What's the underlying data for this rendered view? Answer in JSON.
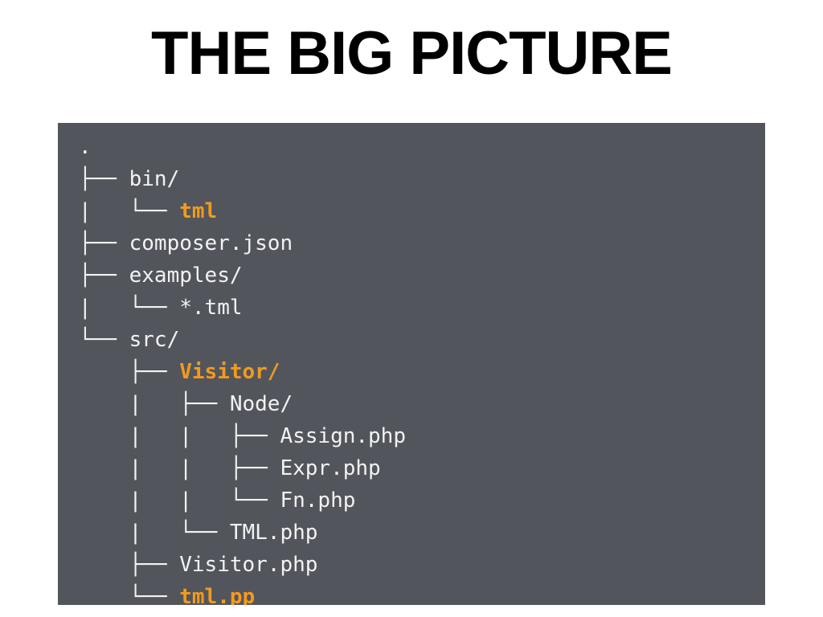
{
  "slide": {
    "title": "THE BIG PICTURE"
  },
  "colors": {
    "panel_background": "#52565c",
    "text": "#f2f2f2",
    "highlight": "#f39a1e"
  },
  "tree": {
    "lines": [
      {
        "prefix": "",
        "name": ".",
        "highlight": false
      },
      {
        "prefix": "├── ",
        "name": "bin/",
        "highlight": false
      },
      {
        "prefix": "|   └── ",
        "name": "tml",
        "highlight": true
      },
      {
        "prefix": "├── ",
        "name": "composer.json",
        "highlight": false
      },
      {
        "prefix": "├── ",
        "name": "examples/",
        "highlight": false
      },
      {
        "prefix": "|   └── ",
        "name": "*.tml",
        "highlight": false
      },
      {
        "prefix": "└── ",
        "name": "src/",
        "highlight": false
      },
      {
        "prefix": "    ├── ",
        "name": "Visitor/",
        "highlight": true
      },
      {
        "prefix": "    |   ├── ",
        "name": "Node/",
        "highlight": false
      },
      {
        "prefix": "    |   |   ├── ",
        "name": "Assign.php",
        "highlight": false
      },
      {
        "prefix": "    |   |   ├── ",
        "name": "Expr.php",
        "highlight": false
      },
      {
        "prefix": "    |   |   └── ",
        "name": "Fn.php",
        "highlight": false
      },
      {
        "prefix": "    |   └── ",
        "name": "TML.php",
        "highlight": false
      },
      {
        "prefix": "    ├── ",
        "name": "Visitor.php",
        "highlight": false
      },
      {
        "prefix": "    └── ",
        "name": "tml.pp",
        "highlight": true
      }
    ]
  }
}
